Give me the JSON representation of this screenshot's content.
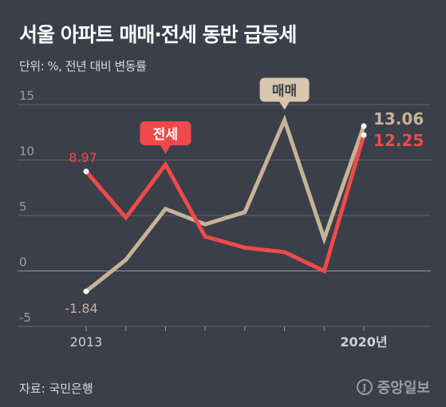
{
  "header": {
    "title": "서울 아파트 매매·전세 동반 급등세",
    "subtitle": "단위: %, 전년 대비 변동률"
  },
  "footer": {
    "source": "자료: 국민은행",
    "logo_text": "중앙일보",
    "logo_mark": "J"
  },
  "chart_data": {
    "type": "line",
    "x": [
      2013,
      2014,
      2015,
      2016,
      2017,
      2018,
      2019,
      2020
    ],
    "x_tick_labels": [
      "2013",
      "",
      "",
      "",
      "",
      "",
      "",
      "2020년"
    ],
    "ylim": [
      -5,
      15
    ],
    "y_ticks": [
      15,
      10,
      5,
      0,
      -5
    ],
    "grid": true,
    "series": [
      {
        "name": "전세",
        "color": "#ef4a4a",
        "values": [
          8.97,
          4.8,
          9.6,
          3.1,
          2.1,
          1.7,
          0.0,
          12.25
        ],
        "start_label": "8.97",
        "end_label": "12.25"
      },
      {
        "name": "매매",
        "color": "#c7b398",
        "values": [
          -1.84,
          1.0,
          5.6,
          4.2,
          5.3,
          13.6,
          2.9,
          13.06
        ],
        "start_label": "-1.84",
        "end_label": "13.06"
      }
    ]
  }
}
